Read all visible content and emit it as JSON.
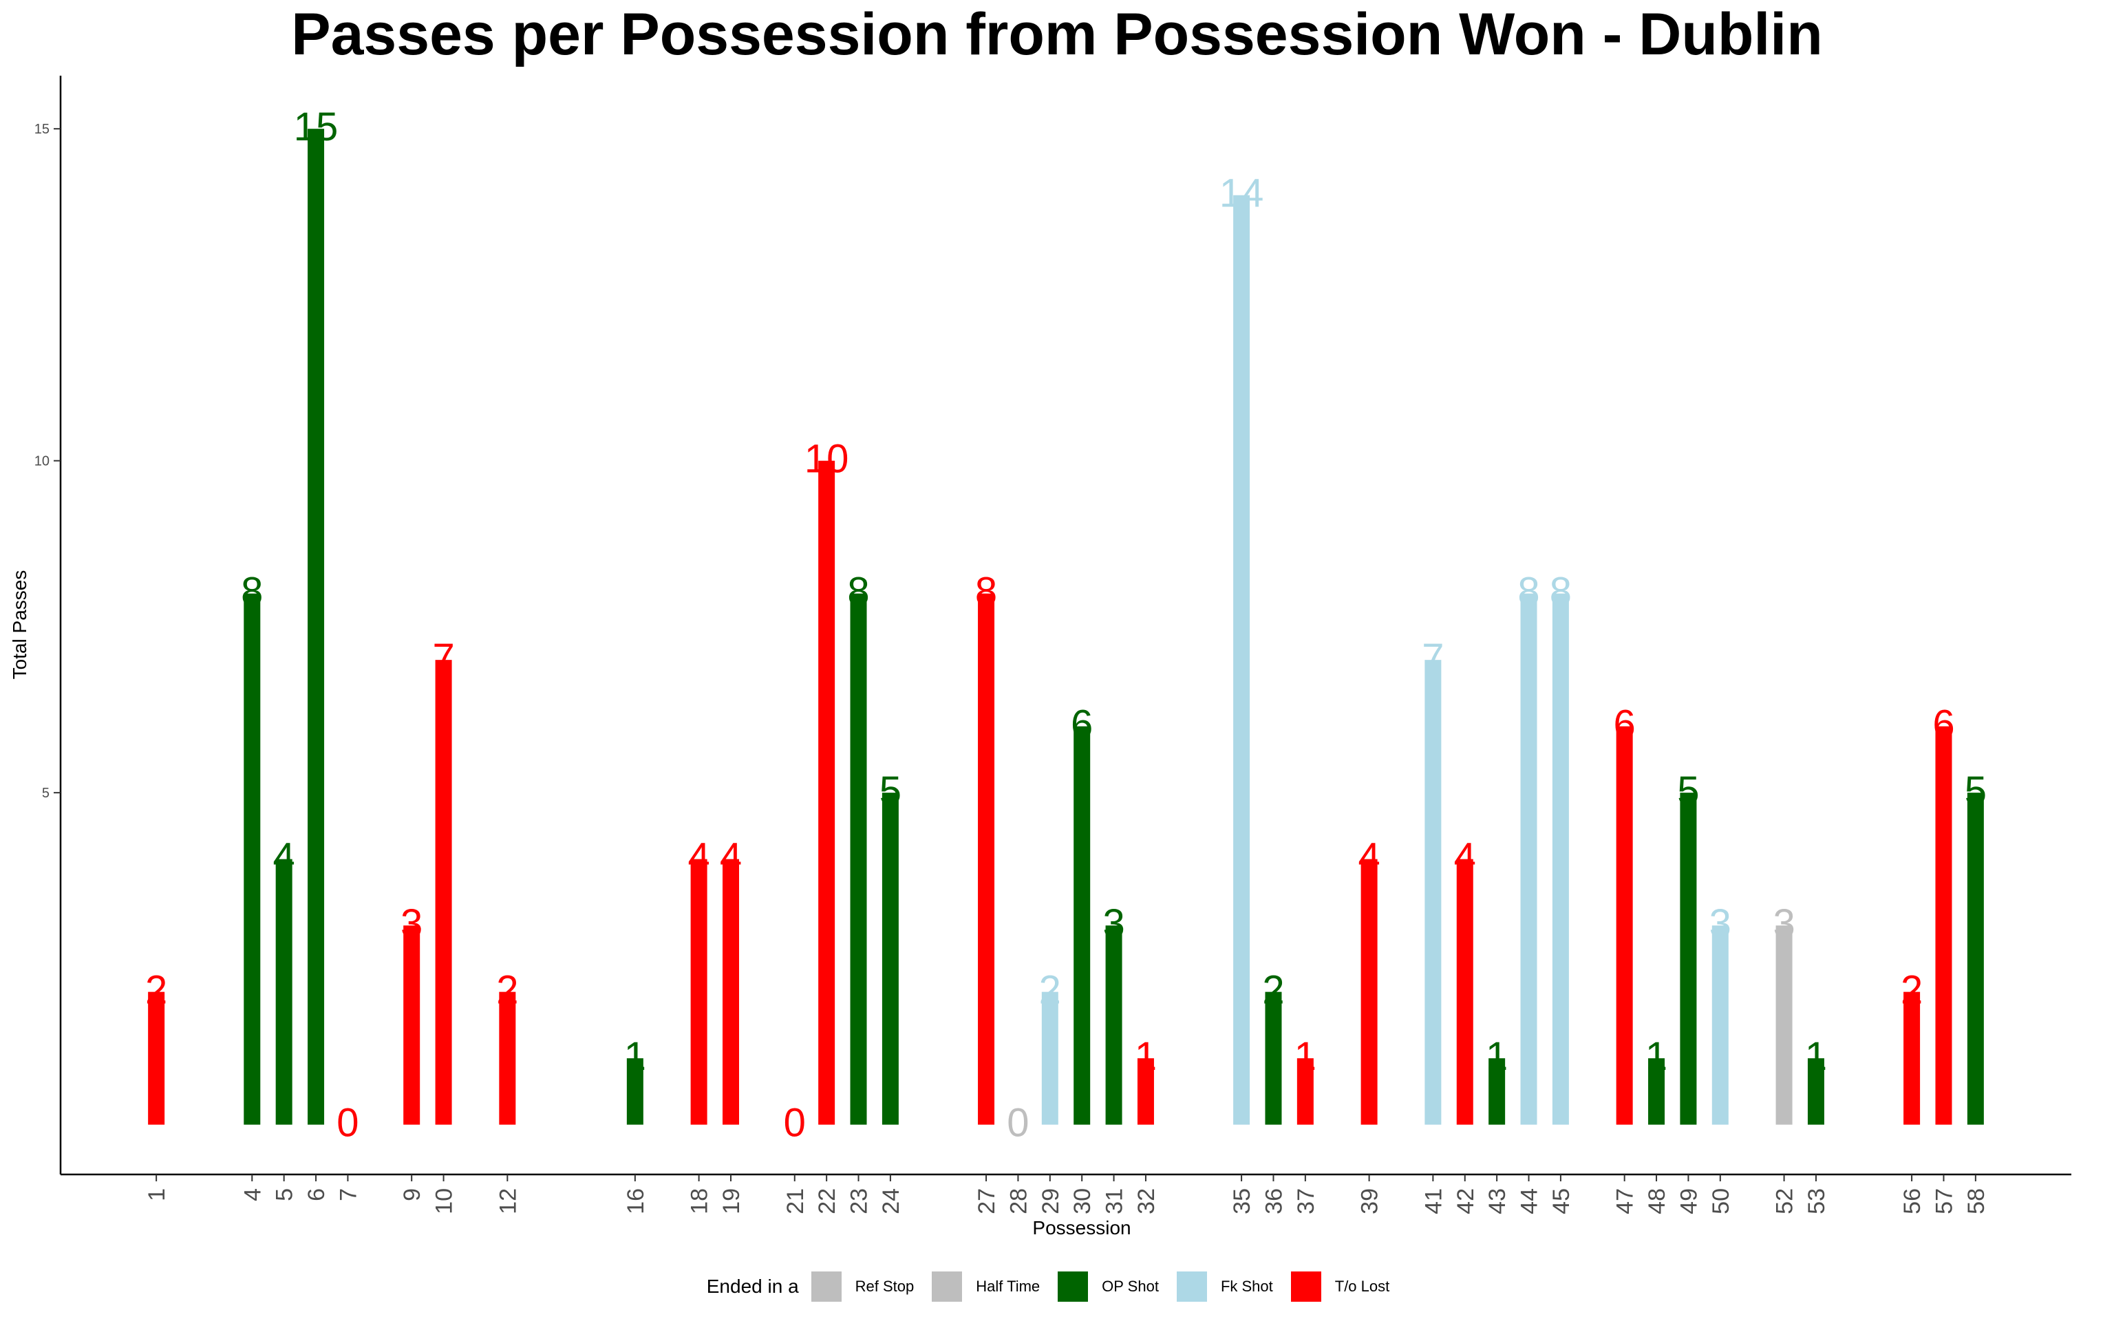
{
  "chart_data": {
    "type": "bar",
    "title": "Passes per Possession from Possession Won - Dublin",
    "xlabel": "Possession",
    "ylabel": "Total Passes",
    "y_ticks": [
      5,
      10,
      15
    ],
    "ylim": [
      -0.75,
      15.8
    ],
    "xlim": [
      -2,
      61
    ],
    "legend_title": "Ended in a",
    "legend_position": "bottom",
    "grid": false,
    "categories": [
      {
        "name": "Ref Stop",
        "color": "#BEBEBE"
      },
      {
        "name": "Half Time",
        "color": "#BEBEBE"
      },
      {
        "name": "OP Shot",
        "color": "#006400"
      },
      {
        "name": "Fk Shot",
        "color": "#ADD8E6"
      },
      {
        "name": "T/o Lost",
        "color": "#FF0000"
      }
    ],
    "bars": [
      {
        "x": 1,
        "value": 2,
        "category": "T/o Lost"
      },
      {
        "x": 4,
        "value": 8,
        "category": "OP Shot"
      },
      {
        "x": 5,
        "value": 4,
        "category": "OP Shot"
      },
      {
        "x": 6,
        "value": 15,
        "category": "OP Shot"
      },
      {
        "x": 7,
        "value": 0,
        "category": "T/o Lost"
      },
      {
        "x": 9,
        "value": 3,
        "category": "T/o Lost"
      },
      {
        "x": 10,
        "value": 7,
        "category": "T/o Lost"
      },
      {
        "x": 12,
        "value": 2,
        "category": "T/o Lost"
      },
      {
        "x": 16,
        "value": 1,
        "category": "OP Shot"
      },
      {
        "x": 18,
        "value": 4,
        "category": "T/o Lost"
      },
      {
        "x": 19,
        "value": 4,
        "category": "T/o Lost"
      },
      {
        "x": 21,
        "value": 0,
        "category": "T/o Lost"
      },
      {
        "x": 22,
        "value": 10,
        "category": "T/o Lost"
      },
      {
        "x": 23,
        "value": 8,
        "category": "OP Shot"
      },
      {
        "x": 24,
        "value": 5,
        "category": "OP Shot"
      },
      {
        "x": 27,
        "value": 8,
        "category": "T/o Lost"
      },
      {
        "x": 28,
        "value": 0,
        "category": "Half Time"
      },
      {
        "x": 29,
        "value": 2,
        "category": "Fk Shot"
      },
      {
        "x": 30,
        "value": 6,
        "category": "OP Shot"
      },
      {
        "x": 31,
        "value": 3,
        "category": "OP Shot"
      },
      {
        "x": 32,
        "value": 1,
        "category": "T/o Lost"
      },
      {
        "x": 35,
        "value": 14,
        "category": "Fk Shot"
      },
      {
        "x": 36,
        "value": 2,
        "category": "OP Shot"
      },
      {
        "x": 37,
        "value": 1,
        "category": "T/o Lost"
      },
      {
        "x": 39,
        "value": 4,
        "category": "T/o Lost"
      },
      {
        "x": 41,
        "value": 7,
        "category": "Fk Shot"
      },
      {
        "x": 42,
        "value": 4,
        "category": "T/o Lost"
      },
      {
        "x": 43,
        "value": 1,
        "category": "OP Shot"
      },
      {
        "x": 44,
        "value": 8,
        "category": "Fk Shot"
      },
      {
        "x": 45,
        "value": 8,
        "category": "Fk Shot"
      },
      {
        "x": 47,
        "value": 6,
        "category": "T/o Lost"
      },
      {
        "x": 48,
        "value": 1,
        "category": "OP Shot"
      },
      {
        "x": 49,
        "value": 5,
        "category": "OP Shot"
      },
      {
        "x": 50,
        "value": 3,
        "category": "Fk Shot"
      },
      {
        "x": 52,
        "value": 3,
        "category": "Ref Stop"
      },
      {
        "x": 53,
        "value": 1,
        "category": "OP Shot"
      },
      {
        "x": 56,
        "value": 2,
        "category": "T/o Lost"
      },
      {
        "x": 57,
        "value": 6,
        "category": "T/o Lost"
      },
      {
        "x": 58,
        "value": 5,
        "category": "OP Shot"
      }
    ]
  }
}
